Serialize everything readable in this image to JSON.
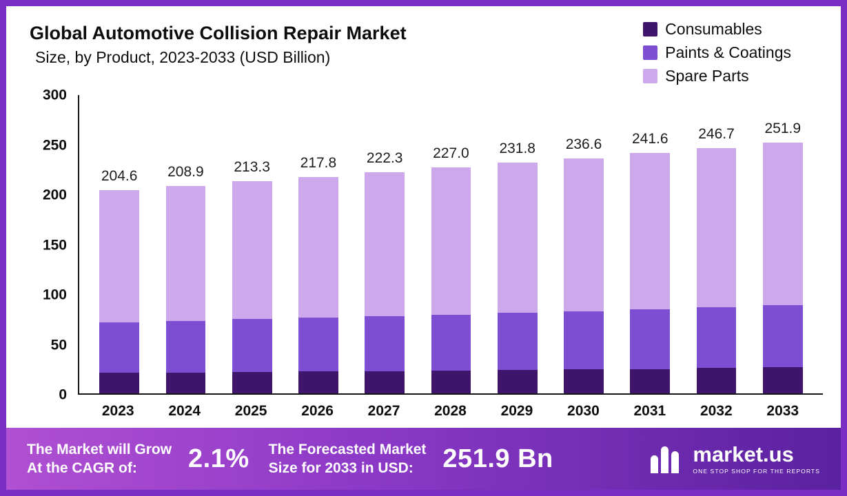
{
  "title": "Global Automotive Collision Repair Market",
  "subtitle": "Size, by Product, 2023-2033 (USD Billion)",
  "chart_data": {
    "type": "bar",
    "stacked": true,
    "title": "Global Automotive Collision Repair Market Size, by Product, 2023-2033 (USD Billion)",
    "categories": [
      "2023",
      "2024",
      "2025",
      "2026",
      "2027",
      "2028",
      "2029",
      "2030",
      "2031",
      "2032",
      "2033"
    ],
    "series": [
      {
        "name": "Consumables",
        "color": "#3f156b",
        "values": [
          20.5,
          21.0,
          21.5,
          22.0,
          22.5,
          23.0,
          23.5,
          24.0,
          24.5,
          25.5,
          26.0
        ]
      },
      {
        "name": "Paints & Coatings",
        "color": "#7d4ed2",
        "values": [
          51.0,
          52.0,
          53.0,
          54.0,
          55.0,
          56.0,
          57.5,
          58.5,
          60.0,
          61.0,
          62.5
        ]
      },
      {
        "name": "Spare Parts",
        "color": "#cda8ec",
        "values": [
          133.1,
          135.9,
          138.8,
          141.8,
          144.8,
          148.0,
          150.8,
          154.1,
          157.1,
          160.2,
          163.4
        ]
      }
    ],
    "totals": [
      204.6,
      208.9,
      213.3,
      217.8,
      222.3,
      227.0,
      231.8,
      236.6,
      241.6,
      246.7,
      251.9
    ],
    "ylim": [
      0,
      300
    ],
    "yticks": [
      0,
      50,
      100,
      150,
      200,
      250,
      300
    ],
    "grid": false,
    "legend_position": "top-right",
    "xlabel": "",
    "ylabel": ""
  },
  "colors": {
    "frame_border": "#7b2fc2",
    "footer_gradient_start": "#b050d2",
    "footer_gradient_end": "#5a21a0"
  },
  "footer": {
    "cagr_label_line1": "The Market will Grow",
    "cagr_label_line2": "At the CAGR of:",
    "cagr_value": "2.1%",
    "forecast_label_line1": "The Forecasted Market",
    "forecast_label_line2": "Size for 2033 in USD:",
    "forecast_value": "251.9 Bn",
    "brand_name": "market.us",
    "brand_tagline": "ONE STOP SHOP FOR THE REPORTS"
  }
}
